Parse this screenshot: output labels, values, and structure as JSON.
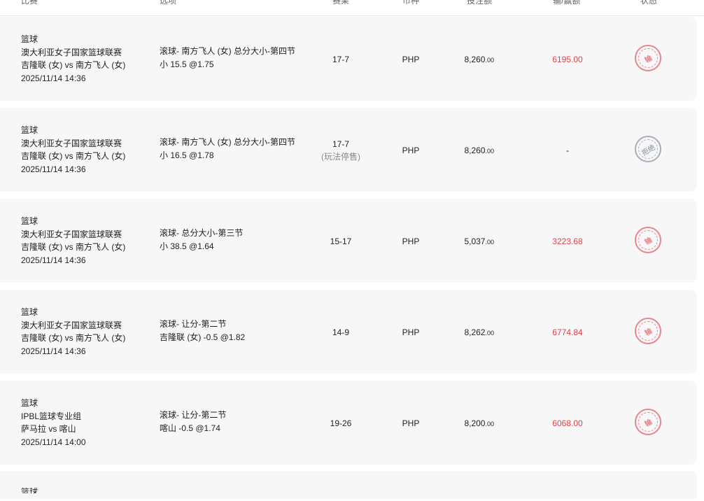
{
  "header": {
    "match": "比赛",
    "option": "选项",
    "result": "赛果",
    "currency": "币种",
    "stake": "投注额",
    "winloss": "输/赢额",
    "status": "状态"
  },
  "rows": [
    {
      "sport": "篮球",
      "league": "澳大利亚女子国家篮球联赛",
      "teams": "吉隆联 (女) vs 南方飞人 (女)",
      "time": "2025/11/14 14:36",
      "market": "滚球- 南方飞人 (女) 总分大小-第四节",
      "pick": "小 15.5 @1.75",
      "result": "17-7",
      "result_note": "",
      "currency": "PHP",
      "stake_int": "8,260",
      "stake_dec": ".00",
      "winloss": "6195.00",
      "status": "输",
      "status_type": "lose"
    },
    {
      "sport": "篮球",
      "league": "澳大利亚女子国家篮球联赛",
      "teams": "吉隆联 (女) vs 南方飞人 (女)",
      "time": "2025/11/14 14:36",
      "market": "滚球- 南方飞人 (女) 总分大小-第四节",
      "pick": "小 16.5 @1.78",
      "result": "17-7",
      "result_note": "(玩法停售)",
      "currency": "PHP",
      "stake_int": "8,260",
      "stake_dec": ".00",
      "winloss": "-",
      "status": "拒绝",
      "status_type": "reject"
    },
    {
      "sport": "篮球",
      "league": "澳大利亚女子国家篮球联赛",
      "teams": "吉隆联 (女) vs 南方飞人 (女)",
      "time": "2025/11/14 14:36",
      "market": "滚球- 总分大小-第三节",
      "pick": "小 38.5 @1.64",
      "result": "15-17",
      "result_note": "",
      "currency": "PHP",
      "stake_int": "5,037",
      "stake_dec": ".00",
      "winloss": "3223.68",
      "status": "输",
      "status_type": "lose"
    },
    {
      "sport": "篮球",
      "league": "澳大利亚女子国家篮球联赛",
      "teams": "吉隆联 (女) vs 南方飞人 (女)",
      "time": "2025/11/14 14:36",
      "market": "滚球- 让分-第二节",
      "pick": "吉隆联 (女) -0.5 @1.82",
      "result": "14-9",
      "result_note": "",
      "currency": "PHP",
      "stake_int": "8,262",
      "stake_dec": ".00",
      "winloss": "6774.84",
      "status": "输",
      "status_type": "lose"
    },
    {
      "sport": "篮球",
      "league": "IPBL篮球专业组",
      "teams": "萨马拉 vs 喀山",
      "time": "2025/11/14 14:00",
      "market": "滚球- 让分-第二节",
      "pick": "喀山 -0.5 @1.74",
      "result": "19-26",
      "result_note": "",
      "currency": "PHP",
      "stake_int": "8,200",
      "stake_dec": ".00",
      "winloss": "6068.00",
      "status": "输",
      "status_type": "lose"
    }
  ],
  "partial_row": {
    "sport": "篮球"
  },
  "colors": {
    "loss": "#e0404b",
    "stamp_lose": "#e8868d",
    "stamp_reject": "#a9afb8",
    "card_bg": "#f7f7f8"
  }
}
